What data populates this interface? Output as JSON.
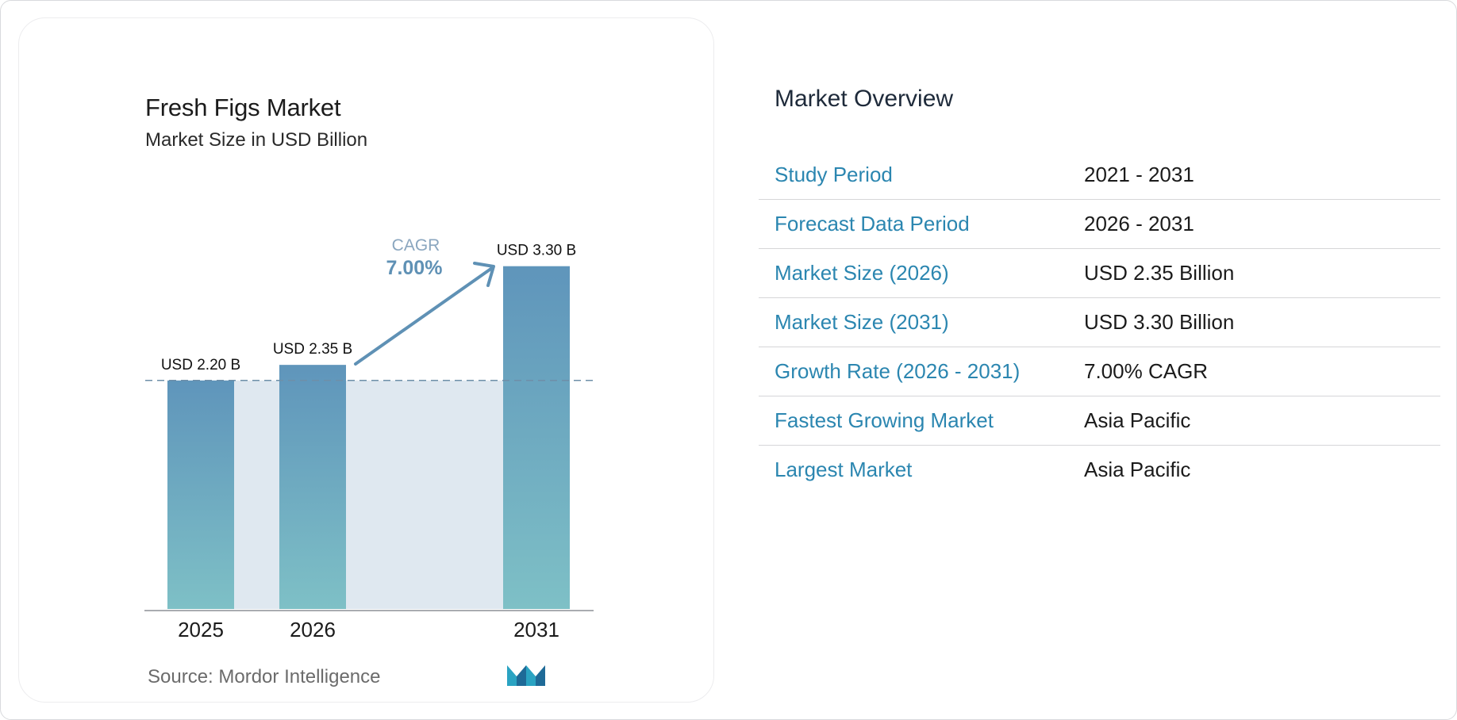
{
  "chart_data": {
    "type": "bar",
    "title": "Fresh Figs Market",
    "subtitle": "Market Size in USD Billion",
    "categories": [
      "2025",
      "2026",
      "2031"
    ],
    "values": [
      2.2,
      2.35,
      3.3
    ],
    "value_labels": [
      "USD 2.20 B",
      "USD 2.35 B",
      "USD 3.30 B"
    ],
    "cagr_label": "CAGR",
    "cagr_value": "7.00%",
    "grid": false,
    "legend": "none",
    "colors": {
      "bar_top": "#5f95bb",
      "bar_bottom": "#7ec0c6",
      "band": "#dfe8f0",
      "arrow": "#5f91b5",
      "cagr_label": "#8aa6bf"
    }
  },
  "source": "Source: Mordor Intelligence",
  "logo": {
    "icon": "mordor-intelligence-logo",
    "colors": [
      "#2a9fbf",
      "#1e5f8f"
    ]
  },
  "overview": {
    "title": "Market Overview",
    "rows": [
      {
        "label": "Study Period",
        "value": "2021 - 2031"
      },
      {
        "label": "Forecast Data Period",
        "value": "2026 - 2031"
      },
      {
        "label": "Market Size (2026)",
        "value": "USD 2.35 Billion"
      },
      {
        "label": "Market Size (2031)",
        "value": "USD 3.30 Billion"
      },
      {
        "label": "Growth Rate (2026 - 2031)",
        "value": "7.00% CAGR"
      },
      {
        "label": "Fastest Growing Market",
        "value": "Asia Pacific"
      },
      {
        "label": "Largest Market",
        "value": "Asia Pacific"
      }
    ],
    "label_color": "#2b86b0"
  }
}
